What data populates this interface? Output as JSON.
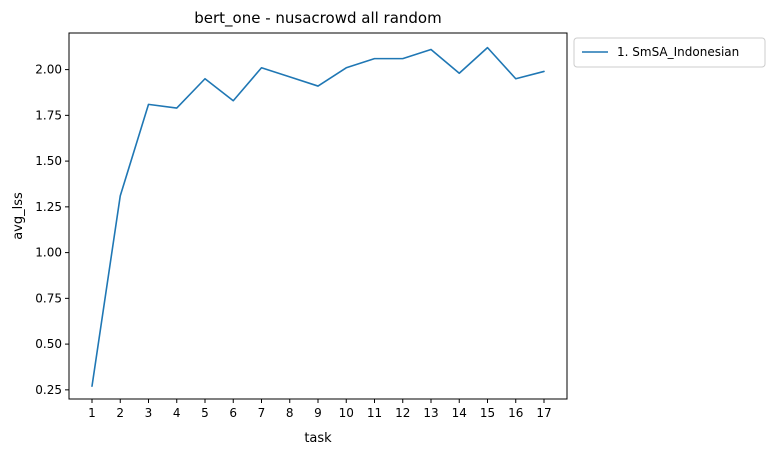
{
  "chart_data": {
    "type": "line",
    "title": "bert_one - nusacrowd all random",
    "xlabel": "task",
    "ylabel": "avg_lss",
    "categories": [
      "1",
      "2",
      "3",
      "4",
      "5",
      "6",
      "7",
      "8",
      "9",
      "10",
      "11",
      "12",
      "13",
      "14",
      "15",
      "16",
      "17"
    ],
    "series": [
      {
        "name": "1. SmSA_Indonesian",
        "color": "#1f77b4",
        "values": [
          0.27,
          1.31,
          1.81,
          1.79,
          1.95,
          1.83,
          2.01,
          1.96,
          1.91,
          2.01,
          2.06,
          2.06,
          2.11,
          1.98,
          2.12,
          1.95,
          1.99
        ]
      }
    ],
    "yticks": [
      "0.25",
      "0.50",
      "0.75",
      "1.00",
      "1.25",
      "1.50",
      "1.75",
      "2.00"
    ],
    "ylim": [
      0.2,
      2.2
    ],
    "grid": false,
    "legend_position": "outside-top-right"
  }
}
